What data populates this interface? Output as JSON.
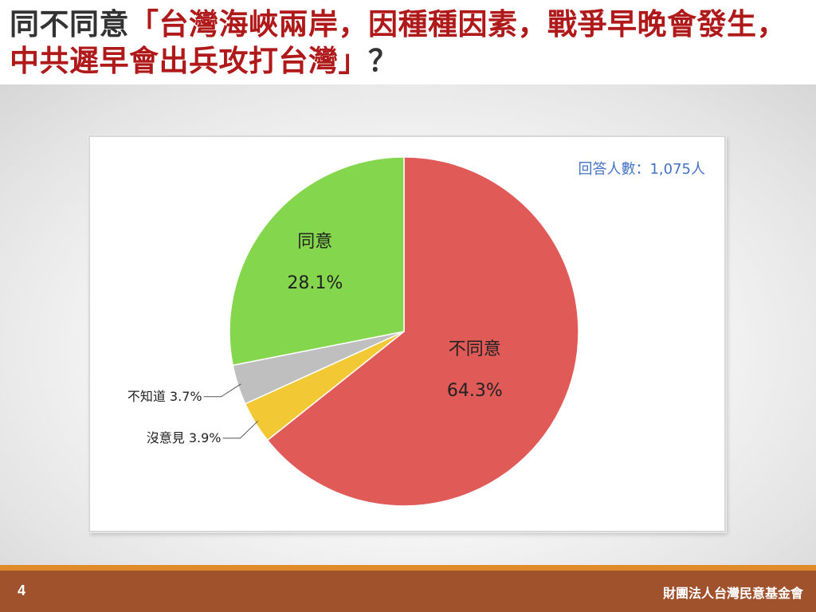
{
  "title": {
    "prefix": "同不同意",
    "quote": "「台灣海峽兩岸，因種種因素，戰爭早晚會發生，中共遲早會出兵攻打台灣」",
    "suffix": "？"
  },
  "chart_data": {
    "type": "pie",
    "note": "回答人數：1,075人",
    "start": "12 o'clock",
    "direction": "clockwise",
    "slices": [
      {
        "category": "不同意",
        "value": 64.3,
        "label": "64.3%",
        "color": "#e05a58",
        "label_position": "inside"
      },
      {
        "category": "沒意見",
        "value": 3.9,
        "label": "3.9%",
        "color": "#f2c935",
        "label_position": "outside-leader"
      },
      {
        "category": "不知道",
        "value": 3.7,
        "label": "3.7%",
        "color": "#bfbfbf",
        "label_position": "outside-leader"
      },
      {
        "category": "同意",
        "value": 28.1,
        "label": "28.1%",
        "color": "#84d64c",
        "label_position": "inside"
      }
    ]
  },
  "footer": {
    "page_number": "4",
    "organization": "財團法人台灣民意基金會"
  },
  "colors": {
    "footer_bar": "#a0522d",
    "footer_accent": "#e08a2c",
    "title_highlight": "#b01919",
    "note_text": "#4472c4"
  }
}
